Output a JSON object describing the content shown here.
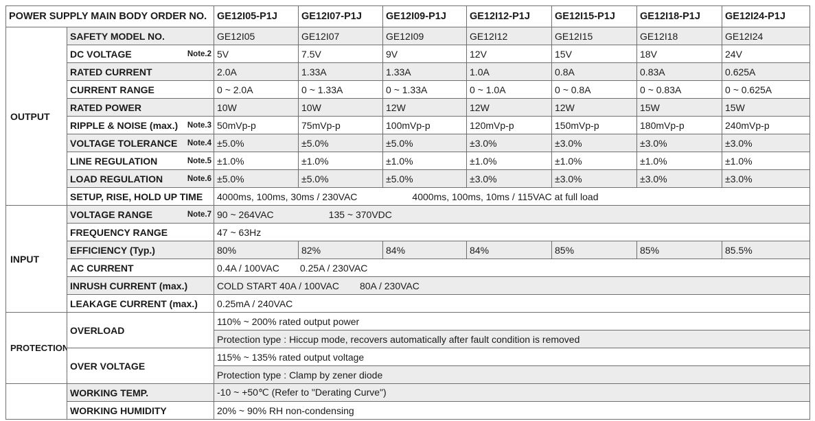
{
  "header": {
    "title": "POWER SUPPLY MAIN BODY ORDER NO.",
    "models": [
      "GE12I05-P1J",
      "GE12I07-P1J",
      "GE12I09-P1J",
      "GE12I12-P1J",
      "GE12I15-P1J",
      "GE12I18-P1J",
      "GE12I24-P1J"
    ]
  },
  "sections": {
    "output": "OUTPUT",
    "input": "INPUT",
    "protection": "PROTECTION"
  },
  "output": {
    "safety_model": {
      "label": "SAFETY MODEL NO.",
      "values": [
        "GE12I05",
        "GE12I07",
        "GE12I09",
        "GE12I12",
        "GE12I15",
        "GE12I18",
        "GE12I24"
      ]
    },
    "dc_voltage": {
      "label": "DC VOLTAGE",
      "note": "Note.2",
      "values": [
        "5V",
        "7.5V",
        "9V",
        "12V",
        "15V",
        "18V",
        "24V"
      ]
    },
    "rated_current": {
      "label": "RATED CURRENT",
      "values": [
        "2.0A",
        "1.33A",
        "1.33A",
        "1.0A",
        "0.8A",
        "0.83A",
        "0.625A"
      ]
    },
    "current_range": {
      "label": "CURRENT RANGE",
      "values": [
        "0 ~ 2.0A",
        "0 ~ 1.33A",
        "0 ~ 1.33A",
        "0 ~ 1.0A",
        "0 ~ 0.8A",
        "0 ~ 0.83A",
        "0 ~ 0.625A"
      ]
    },
    "rated_power": {
      "label": "RATED POWER",
      "values": [
        "10W",
        "10W",
        "12W",
        "12W",
        "12W",
        "15W",
        "15W"
      ]
    },
    "ripple_noise": {
      "label": "RIPPLE & NOISE (max.)",
      "note": "Note.3",
      "values": [
        "50mVp-p",
        "75mVp-p",
        "100mVp-p",
        "120mVp-p",
        "150mVp-p",
        "180mVp-p",
        "240mVp-p"
      ]
    },
    "voltage_tolerance": {
      "label": "VOLTAGE TOLERANCE",
      "note": "Note.4",
      "values": [
        "±5.0%",
        "±5.0%",
        "±5.0%",
        "±3.0%",
        "±3.0%",
        "±3.0%",
        "±3.0%"
      ]
    },
    "line_regulation": {
      "label": "LINE REGULATION",
      "note": "Note.5",
      "values": [
        "±1.0%",
        "±1.0%",
        "±1.0%",
        "±1.0%",
        "±1.0%",
        "±1.0%",
        "±1.0%"
      ]
    },
    "load_regulation": {
      "label": "LOAD REGULATION",
      "note": "Note.6",
      "values": [
        "±5.0%",
        "±5.0%",
        "±5.0%",
        "±3.0%",
        "±3.0%",
        "±3.0%",
        "±3.0%"
      ]
    },
    "setup_rise_hold": {
      "label": "SETUP, RISE, HOLD UP TIME",
      "value_a": "4000ms, 100ms, 30ms / 230VAC",
      "value_b": "4000ms, 100ms, 10ms / 115VAC at full load"
    }
  },
  "input": {
    "voltage_range": {
      "label": "VOLTAGE RANGE",
      "note": "Note.7",
      "value_a": "90 ~ 264VAC",
      "value_b": "135 ~ 370VDC"
    },
    "frequency_range": {
      "label": "FREQUENCY RANGE",
      "value": "47 ~ 63Hz"
    },
    "efficiency": {
      "label": "EFFICIENCY (Typ.)",
      "values": [
        "80%",
        "82%",
        "84%",
        "84%",
        "85%",
        "85%",
        "85.5%"
      ]
    },
    "ac_current": {
      "label": "AC CURRENT",
      "value_a": "0.4A / 100VAC",
      "value_b": "0.25A / 230VAC"
    },
    "inrush_current": {
      "label": "INRUSH CURRENT (max.)",
      "value_a": "COLD START 40A / 100VAC",
      "value_b": "80A / 230VAC"
    },
    "leakage_current": {
      "label": "LEAKAGE CURRENT (max.)",
      "value": "0.25mA / 240VAC"
    }
  },
  "protection": {
    "overload": {
      "label": "OVERLOAD",
      "line1": "110% ~ 200%  rated output power",
      "line2": "Protection type : Hiccup mode, recovers automatically after fault condition is removed"
    },
    "over_voltage": {
      "label": "OVER VOLTAGE",
      "line1": "115% ~ 135%  rated output voltage",
      "line2": "Protection type : Clamp by zener diode"
    }
  },
  "environment": {
    "working_temp": {
      "label": "WORKING TEMP.",
      "value": "-10 ~ +50℃ (Refer to \"Derating Curve\")"
    },
    "working_humidity": {
      "label": "WORKING HUMIDITY",
      "value": "20% ~ 90% RH non-condensing"
    }
  }
}
